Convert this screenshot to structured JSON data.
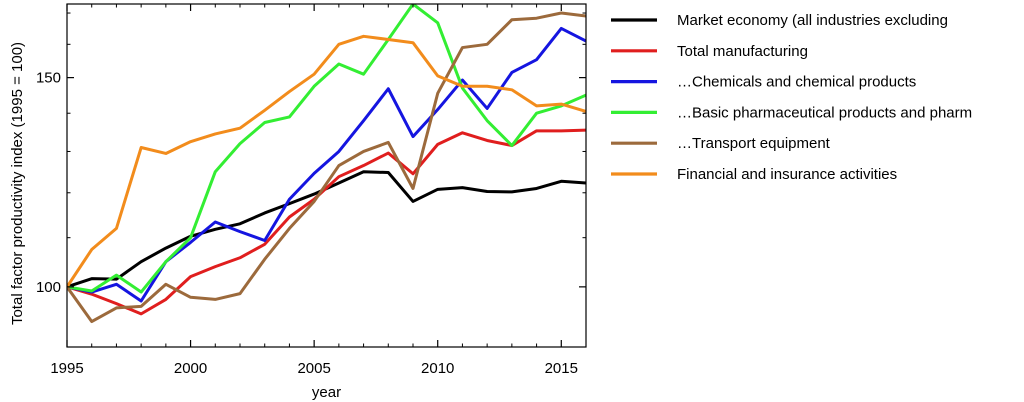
{
  "chart_data": {
    "type": "line",
    "title": "",
    "xlabel": "year",
    "ylabel": "Total factor productivity index (1995 = 100)",
    "xlim": [
      1995,
      2016
    ],
    "ylim": [
      89,
      173
    ],
    "y_scale": "log",
    "grid": false,
    "legend_placement": "outside-right",
    "x_ticks": [
      {
        "value": 1995,
        "label": "1995"
      },
      {
        "value": 2000,
        "label": "2000"
      },
      {
        "value": 2005,
        "label": "2005"
      },
      {
        "value": 2010,
        "label": "2010"
      },
      {
        "value": 2015,
        "label": "2015"
      }
    ],
    "y_ticks": [
      {
        "value": 100,
        "label": "100"
      },
      {
        "value": 150,
        "label": "150"
      }
    ],
    "x": [
      1995,
      1996,
      1997,
      1998,
      1999,
      2000,
      2001,
      2002,
      2003,
      2004,
      2005,
      2006,
      2007,
      2008,
      2009,
      2010,
      2011,
      2012,
      2013,
      2014,
      2015,
      2016
    ],
    "series": [
      {
        "name": "Market economy (all industries excluding",
        "color": "#000000",
        "values": [
          100,
          101.6,
          101.5,
          105,
          107.8,
          110.3,
          111.8,
          113,
          115.4,
          117.5,
          119.7,
          122.3,
          125,
          124.8,
          118,
          120.8,
          121.2,
          120.3,
          120.2,
          121,
          122.7,
          122.3
        ]
      },
      {
        "name": "Total manufacturing",
        "color": "#e01e1e",
        "values": [
          100,
          98.6,
          96.8,
          94.9,
          97.6,
          102,
          104,
          105.8,
          108.6,
          114.5,
          118.5,
          123.8,
          126.5,
          129.6,
          124.5,
          131.8,
          134.8,
          132.8,
          131.5,
          135.3,
          135.3,
          135.5
        ]
      },
      {
        "name": "…Chemicals and chemical products",
        "color": "#1515e0",
        "values": [
          100,
          99,
          100.5,
          97.3,
          105,
          109,
          113.4,
          111.3,
          109.4,
          118.5,
          124.6,
          130,
          138,
          146.8,
          133.8,
          141,
          149.3,
          141.3,
          151.5,
          155.3,
          165,
          161
        ]
      },
      {
        "name": "…Basic pharmaceutical products and pharm",
        "color": "#33ee33",
        "values": [
          100,
          99.2,
          102.3,
          99,
          105,
          110,
          125,
          132,
          137.5,
          139,
          147.5,
          154,
          151,
          161.5,
          173,
          166.8,
          147,
          138,
          131.5,
          140,
          142,
          145
        ]
      },
      {
        "name": "…Transport equipment",
        "color": "#9c6a3c",
        "values": [
          100,
          93.5,
          96,
          96.3,
          100.5,
          98,
          97.6,
          98.7,
          105.5,
          112,
          118,
          126.5,
          130,
          132.3,
          121,
          145.5,
          159,
          160,
          167.8,
          168.3,
          170,
          169
        ]
      },
      {
        "name": "Financial and insurance activities",
        "color": "#f28c1c",
        "values": [
          100,
          107.5,
          112,
          131,
          129.5,
          132.5,
          134.5,
          136,
          140.8,
          146,
          151,
          160,
          162.5,
          161.5,
          160.5,
          150.5,
          147.5,
          147.5,
          146.5,
          142,
          142.5,
          140.5
        ]
      }
    ]
  }
}
